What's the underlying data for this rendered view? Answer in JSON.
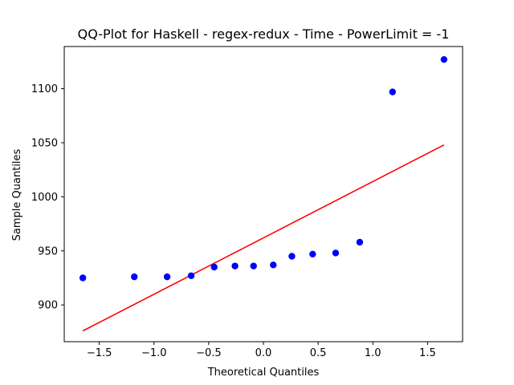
{
  "chart_data": {
    "type": "scatter",
    "title": "QQ-Plot for Haskell - regex-redux - Time - PowerLimit = -1",
    "xlabel": "Theoretical Quantiles",
    "ylabel": "Sample Quantiles",
    "xlim": [
      -1.82,
      1.82
    ],
    "ylim": [
      866,
      1139
    ],
    "xticks": [
      -1.5,
      -1.0,
      -0.5,
      0.0,
      0.5,
      1.0,
      1.5
    ],
    "xtick_labels": [
      "−1.5",
      "−1.0",
      "−0.5",
      "0.0",
      "0.5",
      "1.0",
      "1.5"
    ],
    "yticks": [
      900,
      950,
      1000,
      1050,
      1100
    ],
    "ytick_labels": [
      "900",
      "950",
      "1000",
      "1050",
      "1100"
    ],
    "grid": false,
    "series": [
      {
        "kind": "points",
        "color": "#0000ff",
        "x": [
          -1.65,
          -1.18,
          -0.88,
          -0.66,
          -0.45,
          -0.26,
          -0.09,
          0.09,
          0.26,
          0.45,
          0.66,
          0.88,
          1.18,
          1.65
        ],
        "y": [
          925,
          926,
          926,
          927,
          935,
          936,
          936,
          937,
          945,
          947,
          948,
          958,
          1097,
          1127
        ]
      },
      {
        "kind": "reference-line",
        "color": "#ff0000",
        "x": [
          -1.65,
          1.65
        ],
        "y": [
          876,
          1048
        ]
      }
    ]
  }
}
